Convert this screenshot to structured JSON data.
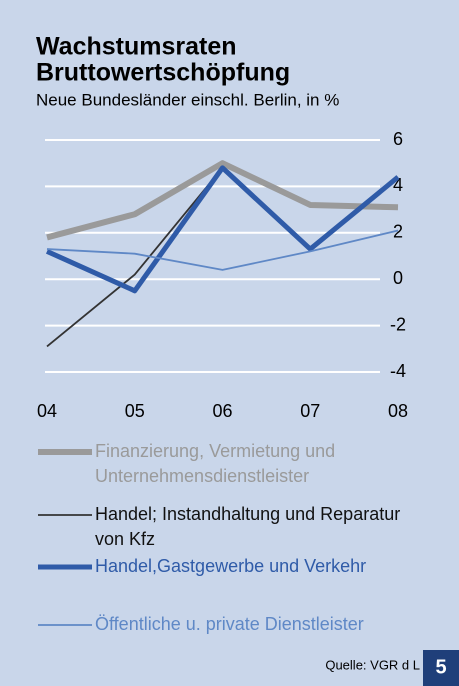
{
  "chart_data": {
    "type": "line",
    "title": [
      "Wachstumsraten",
      "Bruttowertschöpfung"
    ],
    "subtitle": "Neue Bundesländer einschl. Berlin, in %",
    "categories": [
      "04",
      "05",
      "06",
      "07",
      "08"
    ],
    "series": [
      {
        "name": "Finanzierung, Vermietung und Unternehmensdienstleister",
        "color": "#9a9a9a",
        "values": [
          1.8,
          2.8,
          5.0,
          3.2,
          3.1
        ]
      },
      {
        "name": "Handel; Instandhaltung und Reparatur von Kfz",
        "color": "#333333",
        "values": [
          -2.9,
          0.2,
          4.8,
          1.3,
          4.4
        ]
      },
      {
        "name": "Handel,Gastgewerbe und Verkehr",
        "color": "#2f5ba8",
        "values": [
          1.2,
          -0.5,
          4.8,
          1.3,
          4.4
        ]
      },
      {
        "name": "Öffentliche u. private Dienstleister",
        "color": "#5f88c6",
        "values": [
          1.3,
          1.1,
          0.4,
          1.2,
          2.1
        ]
      }
    ],
    "ylim": [
      -4,
      6
    ],
    "yticks": [
      6,
      4,
      2,
      0,
      -2,
      -4
    ],
    "grid": true,
    "source": "Quelle: VGR d L",
    "page_number": "5"
  }
}
